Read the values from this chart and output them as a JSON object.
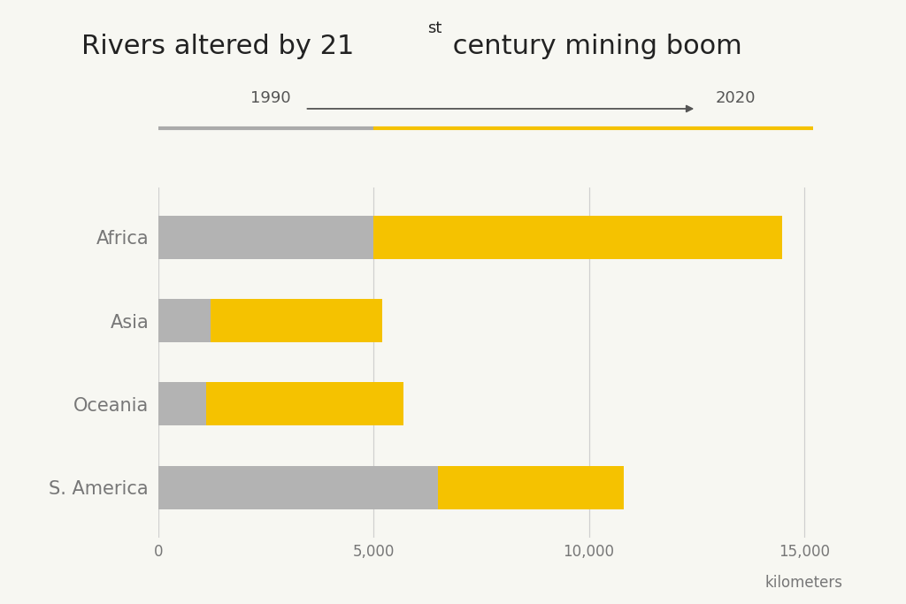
{
  "categories": [
    "Africa",
    "Asia",
    "Oceania",
    "S. America"
  ],
  "gray_values": [
    5000,
    1200,
    1100,
    6500
  ],
  "yellow_values": [
    9500,
    4000,
    4600,
    4300
  ],
  "gray_color": "#b3b3b3",
  "yellow_color": "#F5C200",
  "background_color": "#f7f7f2",
  "xlabel": "kilometers",
  "xlim": [
    0,
    16000
  ],
  "xticks": [
    0,
    5000,
    10000,
    15000
  ],
  "xticklabels": [
    "0",
    "5,000",
    "10,000",
    "15,000"
  ],
  "year_start": "1990",
  "year_end": "2020",
  "bar_height": 0.52,
  "vertical_line_color": "#d0d0d0",
  "arrow_color": "#555555",
  "timeline_gray": "#aaaaaa",
  "timeline_yellow": "#F5C200",
  "title_color": "#222222",
  "tick_color": "#777777"
}
